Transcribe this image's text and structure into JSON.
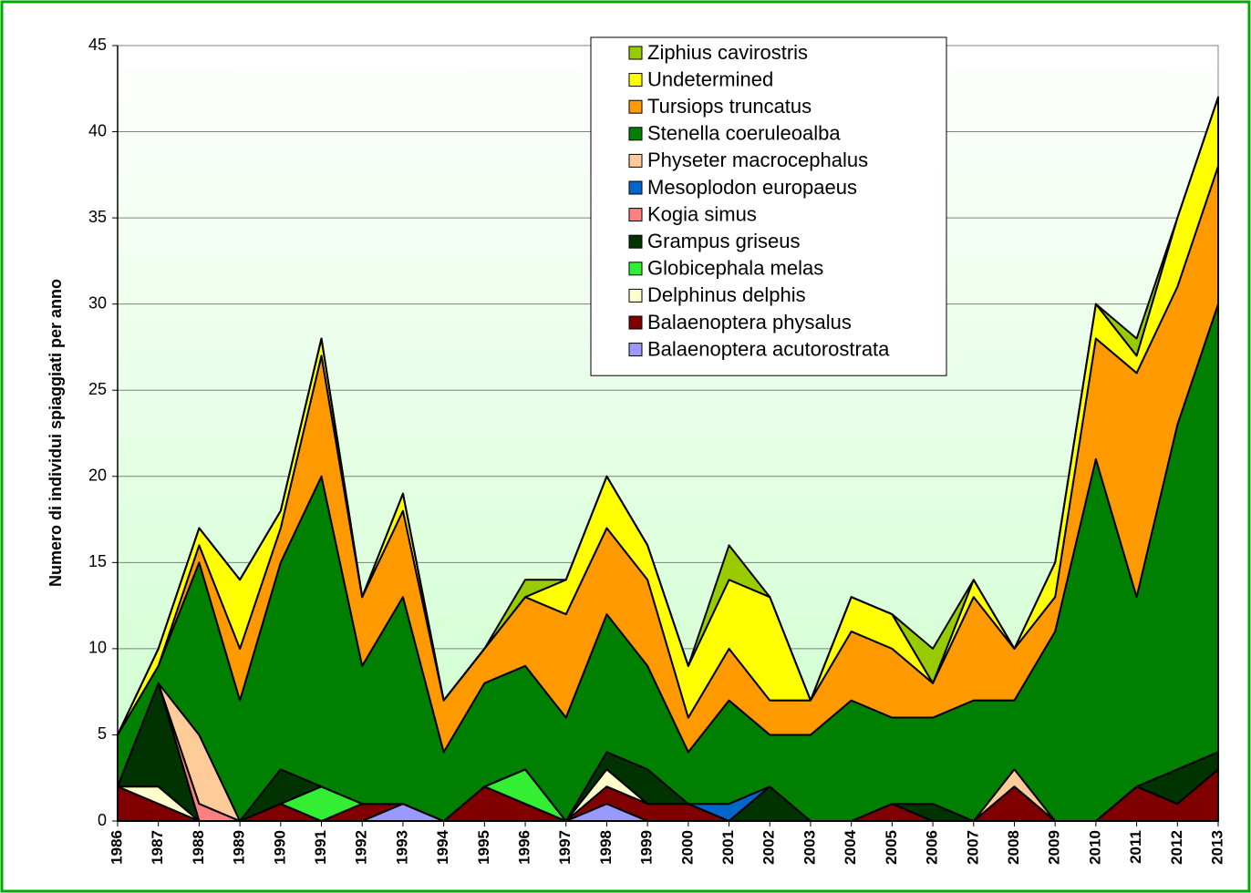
{
  "chart_data": {
    "type": "stacked_area",
    "y_label": "Numero di individui spiaggiati per anno",
    "categories": [
      "1986",
      "1987",
      "1988",
      "1989",
      "1990",
      "1991",
      "1992",
      "1993",
      "1994",
      "1995",
      "1996",
      "1997",
      "1998",
      "1999",
      "2000",
      "2001",
      "2002",
      "2003",
      "2004",
      "2005",
      "2006",
      "2007",
      "2008",
      "2009",
      "2010",
      "2011",
      "2012",
      "2013"
    ],
    "ylim": [
      0,
      45
    ],
    "yticks": [
      0,
      5,
      10,
      15,
      20,
      25,
      30,
      35,
      40,
      45
    ],
    "grid": true,
    "series": [
      {
        "name": "Balaenoptera acutorostrata",
        "color": "#9999ff",
        "values": [
          0,
          0,
          0,
          0,
          0,
          0,
          0,
          1,
          0,
          0,
          0,
          0,
          1,
          0,
          0,
          0,
          0,
          0,
          0,
          0,
          0,
          0,
          0,
          0,
          0,
          0,
          0,
          0
        ]
      },
      {
        "name": "Balaenoptera physalus",
        "color": "#800000",
        "values": [
          2,
          1,
          0,
          0,
          1,
          0,
          1,
          0,
          0,
          2,
          1,
          0,
          1,
          1,
          1,
          0,
          0,
          0,
          0,
          1,
          0,
          0,
          2,
          0,
          0,
          2,
          1,
          3
        ]
      },
      {
        "name": "Delphinus delphis",
        "color": "#ffffcc",
        "values": [
          0,
          1,
          0,
          0,
          0,
          0,
          0,
          0,
          0,
          0,
          0,
          0,
          1,
          0,
          0,
          0,
          0,
          0,
          0,
          0,
          0,
          0,
          0,
          0,
          0,
          0,
          0,
          0
        ]
      },
      {
        "name": "Globicephala melas",
        "color": "#33ee33",
        "values": [
          0,
          0,
          0,
          0,
          0,
          2,
          0,
          0,
          0,
          0,
          2,
          0,
          0,
          0,
          0,
          0,
          0,
          0,
          0,
          0,
          0,
          0,
          0,
          0,
          0,
          0,
          0,
          0
        ]
      },
      {
        "name": "Grampus griseus",
        "color": "#003300",
        "values": [
          0,
          6,
          0,
          0,
          2,
          0,
          0,
          0,
          0,
          0,
          0,
          0,
          1,
          2,
          0,
          0,
          2,
          0,
          0,
          0,
          1,
          0,
          0,
          0,
          0,
          0,
          2,
          1
        ]
      },
      {
        "name": "Kogia simus",
        "color": "#ff8080",
        "values": [
          0,
          0,
          1,
          0,
          0,
          0,
          0,
          0,
          0,
          0,
          0,
          0,
          0,
          0,
          0,
          0,
          0,
          0,
          0,
          0,
          0,
          0,
          0,
          0,
          0,
          0,
          0,
          0
        ]
      },
      {
        "name": "Mesoplodon europaeus",
        "color": "#0066cc",
        "values": [
          0,
          0,
          0,
          0,
          0,
          0,
          0,
          0,
          0,
          0,
          0,
          0,
          0,
          0,
          0,
          1,
          0,
          0,
          0,
          0,
          0,
          0,
          0,
          0,
          0,
          0,
          0,
          0
        ]
      },
      {
        "name": "Physeter macrocephalus",
        "color": "#ffcc99",
        "values": [
          0,
          0,
          4,
          0,
          0,
          0,
          0,
          0,
          0,
          0,
          0,
          0,
          0,
          0,
          0,
          0,
          0,
          0,
          0,
          0,
          0,
          0,
          1,
          0,
          0,
          0,
          0,
          0
        ]
      },
      {
        "name": "Stenella coeruleoalba",
        "color": "#008000",
        "values": [
          3,
          1,
          10,
          7,
          12,
          18,
          8,
          12,
          4,
          6,
          6,
          6,
          8,
          6,
          3,
          6,
          3,
          5,
          7,
          5,
          5,
          7,
          4,
          11,
          21,
          11,
          20,
          26
        ]
      },
      {
        "name": "Tursiops truncatus",
        "color": "#ff9900",
        "values": [
          0,
          0,
          1,
          3,
          2,
          7,
          4,
          5,
          3,
          2,
          4,
          6,
          5,
          5,
          2,
          3,
          2,
          2,
          4,
          4,
          2,
          6,
          3,
          2,
          7,
          13,
          8,
          8
        ]
      },
      {
        "name": "Undetermined",
        "color": "#ffff00",
        "values": [
          0,
          1,
          1,
          4,
          1,
          1,
          0,
          1,
          0,
          0,
          0,
          2,
          3,
          2,
          3,
          4,
          6,
          0,
          2,
          2,
          0,
          1,
          0,
          2,
          2,
          1,
          4,
          4
        ]
      },
      {
        "name": "Ziphius cavirostris",
        "color": "#99cc00",
        "values": [
          0,
          0,
          0,
          0,
          0,
          0,
          0,
          0,
          0,
          0,
          1,
          0,
          0,
          0,
          0,
          2,
          0,
          0,
          0,
          0,
          2,
          0,
          0,
          0,
          0,
          1,
          0,
          0
        ]
      }
    ]
  }
}
